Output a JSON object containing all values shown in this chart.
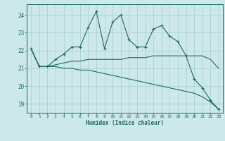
{
  "title": "",
  "xlabel": "Humidex (Indice chaleur)",
  "ylabel": "",
  "bg_color": "#cce8e8",
  "grid_color": "#aacccc",
  "line_color": "#1a6b60",
  "xlim": [
    -0.5,
    23.5
  ],
  "ylim": [
    18.5,
    24.6
  ],
  "xticks": [
    0,
    1,
    2,
    3,
    4,
    5,
    6,
    7,
    8,
    9,
    10,
    11,
    12,
    13,
    14,
    15,
    16,
    17,
    18,
    19,
    20,
    21,
    22,
    23
  ],
  "yticks": [
    19,
    20,
    21,
    22,
    23,
    24
  ],
  "series_main": [
    22.1,
    21.1,
    21.1,
    21.5,
    21.8,
    22.2,
    22.2,
    23.3,
    24.2,
    22.1,
    23.6,
    24.0,
    22.6,
    22.2,
    22.2,
    23.2,
    23.4,
    22.8,
    22.5,
    21.7,
    20.4,
    19.9,
    19.2,
    18.7
  ],
  "series_upper": [
    22.1,
    21.1,
    21.1,
    21.2,
    21.3,
    21.4,
    21.4,
    21.5,
    21.5,
    21.5,
    21.5,
    21.5,
    21.6,
    21.6,
    21.6,
    21.7,
    21.7,
    21.7,
    21.7,
    21.7,
    21.7,
    21.7,
    21.5,
    21.0
  ],
  "series_lower": [
    22.1,
    21.1,
    21.1,
    21.1,
    21.0,
    21.0,
    20.9,
    20.9,
    20.8,
    20.7,
    20.6,
    20.5,
    20.4,
    20.3,
    20.2,
    20.1,
    20.0,
    19.9,
    19.8,
    19.7,
    19.6,
    19.4,
    19.1,
    18.7
  ]
}
